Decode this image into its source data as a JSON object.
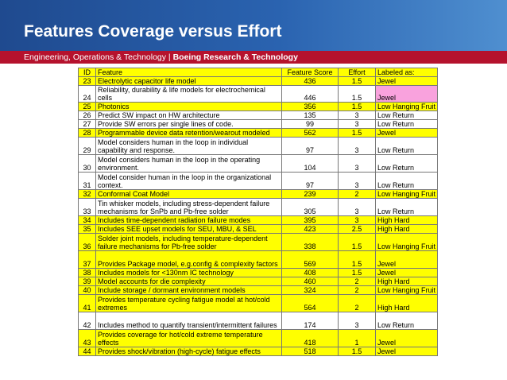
{
  "slide": {
    "title": "Features Coverage versus Effort",
    "org_prefix": "Engineering, Operations & Technology | ",
    "org_bold": "Boeing Research & Technology"
  },
  "colors": {
    "header_blue": "#1f4a8f",
    "subbar_red": "#b5122d",
    "highlight_yellow": "#ffff00",
    "jewel_pink": "#f9a2dd",
    "high_hard_blue": "#a4c8f0"
  },
  "table": {
    "headers": {
      "id": "ID",
      "feature": "Feature",
      "score": "Feature Score",
      "effort": "Effort",
      "label": "Labeled as:"
    },
    "rows": [
      {
        "id": "23",
        "feature": "Electrolytic capacitor life model",
        "score": "436",
        "effort": "1.5",
        "label": "Jewel",
        "highlight": true
      },
      {
        "id": "24",
        "feature": "Reliability, durability & life models for electrochemical cells",
        "score": "446",
        "effort": "1.5",
        "label": "Jewel",
        "highlight": false
      },
      {
        "id": "25",
        "feature": "Photonics",
        "score": "356",
        "effort": "1.5",
        "label": "Low Hanging Fruit",
        "highlight": true
      },
      {
        "id": "26",
        "feature": "Predict SW impact on HW architecture",
        "score": "135",
        "effort": "3",
        "label": "Low Return",
        "highlight": false
      },
      {
        "id": "27",
        "feature": "Provide SW errors per single lines of code.",
        "score": "99",
        "effort": "3",
        "label": "Low Return",
        "highlight": false
      },
      {
        "id": "28",
        "feature": "Programmable device data retention/wearout modeled",
        "score": "562",
        "effort": "1.5",
        "label": "Jewel",
        "highlight": true
      },
      {
        "id": "29",
        "feature": "Model considers human in the loop in individual capability and response.",
        "score": "97",
        "effort": "3",
        "label": "Low Return",
        "highlight": false
      },
      {
        "id": "30",
        "feature": "Model considers human in the loop in the operating environment.",
        "score": "104",
        "effort": "3",
        "label": "Low Return",
        "highlight": false
      },
      {
        "id": "31",
        "feature": "Model consider human in the loop in the organizational context.",
        "score": "97",
        "effort": "3",
        "label": "Low Return",
        "highlight": false
      },
      {
        "id": "32",
        "feature": "Conformal Coat Model",
        "score": "239",
        "effort": "2",
        "label": "Low Hanging Fruit",
        "highlight": true
      },
      {
        "id": "33",
        "feature": "Tin whisker models, including stress-dependent failure mechanisms for SnPb and Pb-free solder",
        "score": "305",
        "effort": "3",
        "label": "Low Return",
        "highlight": false
      },
      {
        "id": "34",
        "feature": "Includes time-dependent radiation failure modes",
        "score": "395",
        "effort": "3",
        "label": "High Hard",
        "highlight": true
      },
      {
        "id": "35",
        "feature": "Includes SEE upset models for SEU, MBU, & SEL",
        "score": "423",
        "effort": "2.5",
        "label": "High Hard",
        "highlight": true
      },
      {
        "id": "36",
        "feature": "Solder joint models, including temperature-dependent failure mechanisms for Pb-free solder",
        "score": "338",
        "effort": "1.5",
        "label": "Low Hanging Fruit",
        "highlight": true
      },
      {
        "id": "37",
        "feature": "Provides Package model, e.g.config & complexity factors",
        "score": "569",
        "effort": "1.5",
        "label": "Jewel",
        "highlight": true
      },
      {
        "id": "38",
        "feature": "Includes models for <130nm IC technology",
        "score": "408",
        "effort": "1.5",
        "label": "Jewel",
        "highlight": true
      },
      {
        "id": "39",
        "feature": "Model accounts for die complexity",
        "score": "460",
        "effort": "2",
        "label": "High Hard",
        "highlight": true
      },
      {
        "id": "40",
        "feature": "Include storage / dormant environment models",
        "score": "324",
        "effort": "2",
        "label": "Low Hanging Fruit",
        "highlight": true
      },
      {
        "id": "41",
        "feature": "Provides temperature cycling fatigue model at hot/cold extremes",
        "score": "564",
        "effort": "2",
        "label": "High Hard",
        "highlight": true
      },
      {
        "id": "42",
        "feature": "Includes method to quantify transient/intermittent failures",
        "score": "174",
        "effort": "3",
        "label": "Low Return",
        "highlight": false
      },
      {
        "id": "43",
        "feature": "Provides coverage for hot/cold extreme temperature effects",
        "score": "418",
        "effort": "1",
        "label": "Jewel",
        "highlight": true
      },
      {
        "id": "44",
        "feature": "Provides shock/vibration (high-cycle) fatigue effects",
        "score": "518",
        "effort": "1.5",
        "label": "Jewel",
        "highlight": true
      }
    ]
  }
}
